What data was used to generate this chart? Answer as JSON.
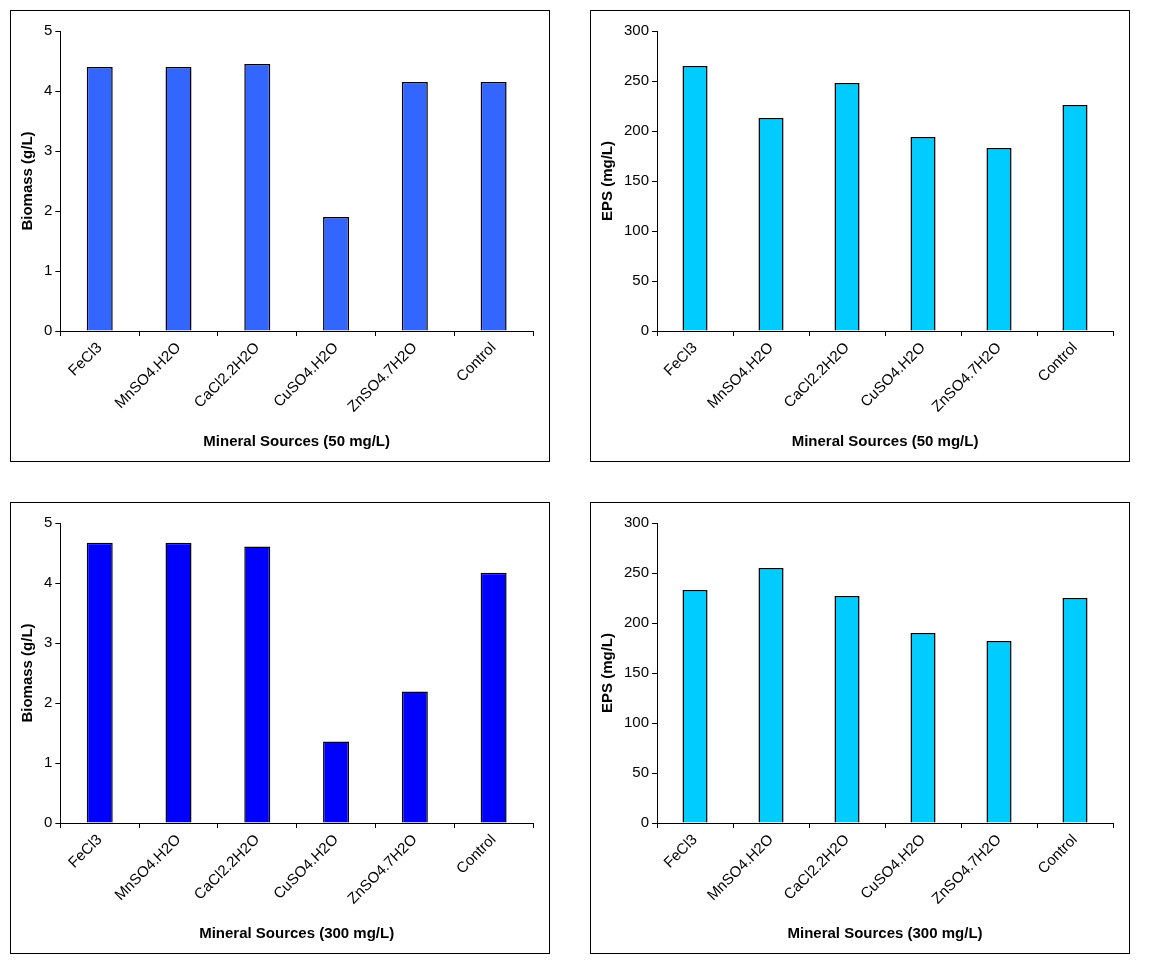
{
  "chart_data": [
    {
      "type": "bar",
      "xlabel": "Mineral Sources (50 mg/L)",
      "ylabel": "Biomass (g/L)",
      "categories": [
        "FeCl3",
        "MnSO4.H2O",
        "CaCl2.2H2O",
        "CuSO4.H2O",
        "ZnSO4.7H2O",
        "Control"
      ],
      "values": [
        4.4,
        4.4,
        4.45,
        1.9,
        4.15,
        4.15
      ],
      "color": "#3366ff",
      "ylim": [
        0,
        5
      ],
      "yticks": [
        0,
        1,
        2,
        3,
        4,
        5
      ]
    },
    {
      "type": "bar",
      "xlabel": "Mineral Sources (50 mg/L)",
      "ylabel": "EPS (mg/L)",
      "categories": [
        "FeCl3",
        "MnSO4.H2O",
        "CaCl2.2H2O",
        "CuSO4.H2O",
        "ZnSO4.7H2O",
        "Control"
      ],
      "values": [
        265,
        213,
        248,
        194,
        183,
        226
      ],
      "color": "#00ccff",
      "ylim": [
        0,
        300
      ],
      "yticks": [
        0,
        50,
        100,
        150,
        200,
        250,
        300
      ]
    },
    {
      "type": "bar",
      "xlabel": "Mineral Sources (300 mg/L)",
      "ylabel": "Biomass (g/L)",
      "categories": [
        "FeCl3",
        "MnSO4.H2O",
        "CaCl2.2H2O",
        "CuSO4.H2O",
        "ZnSO4.7H2O",
        "Control"
      ],
      "values": [
        4.67,
        4.67,
        4.61,
        1.36,
        2.19,
        4.17
      ],
      "color": "#0000ff",
      "ylim": [
        0,
        5
      ],
      "yticks": [
        0,
        1,
        2,
        3,
        4,
        5
      ]
    },
    {
      "type": "bar",
      "xlabel": "Mineral Sources (300 mg/L)",
      "ylabel": "EPS (mg/L)",
      "categories": [
        "FeCl3",
        "MnSO4.H2O",
        "CaCl2.2H2O",
        "CuSO4.H2O",
        "ZnSO4.7H2O",
        "Control"
      ],
      "values": [
        233,
        255,
        227,
        190,
        182,
        225
      ],
      "color": "#00ccff",
      "ylim": [
        0,
        300
      ],
      "yticks": [
        0,
        50,
        100,
        150,
        200,
        250,
        300
      ]
    }
  ]
}
